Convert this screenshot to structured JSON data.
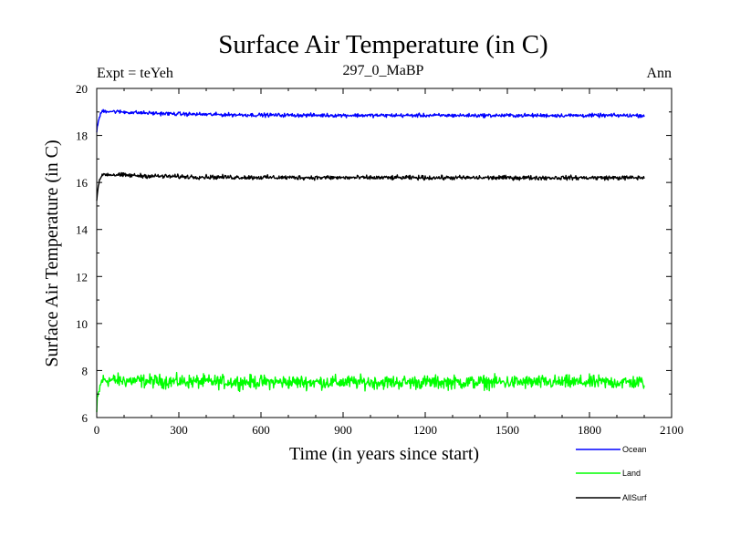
{
  "chart_data": {
    "type": "line",
    "title": "Surface Air Temperature (in C)",
    "subtitle_left": "Expt = teYeh",
    "subtitle_center": "297_0_MaBP",
    "subtitle_right": "Ann",
    "xlabel": "Time (in years since start)",
    "ylabel": "Surface Air Temperature (in C)",
    "xlim": [
      0,
      2100
    ],
    "ylim": [
      6,
      20
    ],
    "xticks": [
      0,
      300,
      600,
      900,
      1200,
      1500,
      1800,
      2100
    ],
    "yticks": [
      6,
      8,
      10,
      12,
      14,
      16,
      18,
      20
    ],
    "x_end": 2000,
    "series": [
      {
        "name": "Ocean",
        "color": "#0000ff",
        "start_value": 18.05,
        "peak_value": 19.05,
        "baseline_value": 18.85,
        "noise_amplitude": 0.06
      },
      {
        "name": "Land",
        "color": "#00ff00",
        "start_value": 6.2,
        "peak_value": 7.6,
        "baseline_value": 7.5,
        "noise_amplitude": 0.22
      },
      {
        "name": "AllSurf",
        "color": "#000000",
        "start_value": 15.2,
        "peak_value": 16.35,
        "baseline_value": 16.2,
        "noise_amplitude": 0.07
      }
    ]
  }
}
